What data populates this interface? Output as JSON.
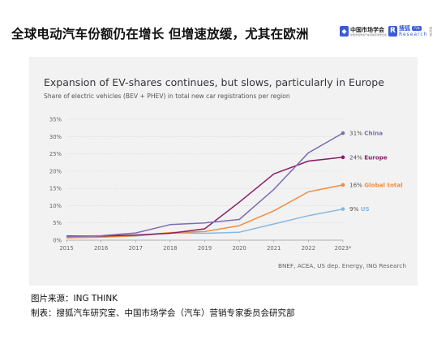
{
  "header": {
    "title": "全球电动汽车份额仍在增长 但增速放缓，尤其在欧洲",
    "logo_a_name": "中国市场学会",
    "logo_a_sub": "中国市场学会汽车营销专家委员会",
    "logo_b_name": "搜狐",
    "logo_b_badge": "汽车",
    "logo_b_sub": "Research",
    "logo_b_side": "研究室"
  },
  "chart_data": {
    "type": "line",
    "title": "Expansion of EV-shares continues, but slows, particularly in Europe",
    "subtitle": "Share of electric vehicles (BEV + PHEV) in total new car registrations per region",
    "categories": [
      "2015",
      "2016",
      "2017",
      "2018",
      "2019",
      "2020",
      "2021",
      "2022",
      "2023*"
    ],
    "ylim": [
      0,
      35
    ],
    "yticks": [
      "0%",
      "5%",
      "10%",
      "15%",
      "20%",
      "25%",
      "30%",
      "35%"
    ],
    "grid": true,
    "series": [
      {
        "name": "China",
        "label": "31% China",
        "color": "#7d6db0",
        "values": [
          1.0,
          1.3,
          2.1,
          4.5,
          5.0,
          6.0,
          14.7,
          25.3,
          31.0
        ]
      },
      {
        "name": "Europe",
        "label": "24% Europe",
        "color": "#8a1e6b",
        "values": [
          1.2,
          1.2,
          1.5,
          2.0,
          3.3,
          11.0,
          19.2,
          22.9,
          24.0
        ]
      },
      {
        "name": "Global total",
        "label": "16% Global total",
        "color": "#f28c3c",
        "values": [
          0.7,
          0.9,
          1.3,
          2.2,
          2.5,
          4.2,
          8.5,
          14.0,
          16.0
        ]
      },
      {
        "name": "US",
        "label": "9% US",
        "color": "#86b9e0",
        "values": [
          0.7,
          0.9,
          1.2,
          2.1,
          2.0,
          2.3,
          4.7,
          7.1,
          9.0
        ]
      }
    ],
    "source": "BNEF, ACEA, US dep. Energy, ING Research"
  },
  "footer": {
    "line1": "图片来源：ING THINK",
    "line2": "制表：搜狐汽车研究室、中国市场学会（汽车）营销专家委员会研究部"
  }
}
